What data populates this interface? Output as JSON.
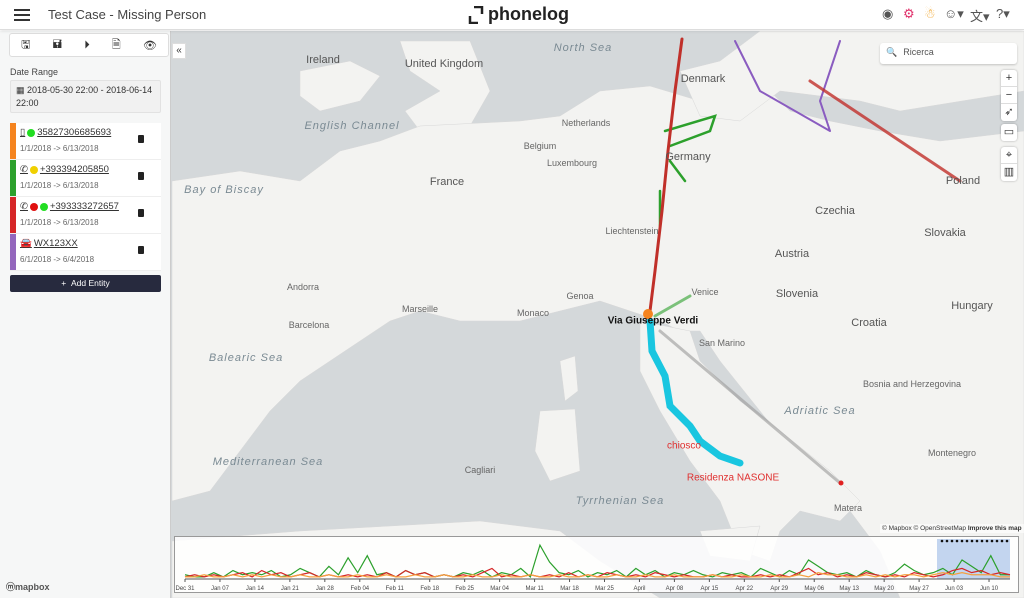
{
  "header": {
    "title": "Test Case - Missing Person",
    "logo": "phonelog",
    "icons": [
      "record-icon",
      "settings-cogs-icon",
      "person-icon",
      "account-icon",
      "translate-icon",
      "help-icon"
    ]
  },
  "sidebar": {
    "date_range_label": "Date Range",
    "date_range_value": "2018-05-30 22:00 - 2018-06-14 22:00",
    "entities": [
      {
        "id": "35827306685693",
        "type": "phone-device",
        "dates": "1/1/2018 -> 6/13/2018",
        "color": "#f5841f",
        "status": [
          "#22dd22"
        ]
      },
      {
        "id": "+393394205850",
        "type": "phone-number",
        "dates": "1/1/2018 -> 6/13/2018",
        "color": "#2ca02c",
        "status": [
          "#f0d000"
        ]
      },
      {
        "id": "+393333272657",
        "type": "phone-number",
        "dates": "1/1/2018 -> 6/13/2018",
        "color": "#d62728",
        "status": [
          "#e01010",
          "#22dd22"
        ]
      },
      {
        "id": "WX123XX",
        "type": "car",
        "dates": "6/1/2018 -> 6/4/2018",
        "color": "#9467bd",
        "status": []
      }
    ],
    "add_entity": "Add Entity"
  },
  "map": {
    "search_placeholder": "Ricerca",
    "attribution": "© Mapbox © OpenStreetMap",
    "improve": "Improve this map",
    "mapbox_logo": "mapbox",
    "labels": [
      "North Sea",
      "Ireland",
      "United Kingdom",
      "Denmark",
      "Netherlands",
      "Belgium",
      "Luxembourg",
      "Germany",
      "France",
      "Bay of Biscay",
      "English Channel",
      "Poland",
      "Czechia",
      "Liechtenstein",
      "Austria",
      "Slovakia",
      "Hungary",
      "Andorra",
      "Monaco",
      "Slovenia",
      "Croatia",
      "Barcelona",
      "Balearic Sea",
      "San Marino",
      "Bosnia and Herzegovina",
      "Adriatic Sea",
      "Mediterranean Sea",
      "Cagliari",
      "Tyrrhenian Sea",
      "Montenegro",
      "Venice",
      "Marseille",
      "Genoa",
      "Matera"
    ],
    "pois": {
      "verdi": "Via Giuseppe Verdi",
      "chiosco": "chiosco",
      "nasone": "Residenza NASONE"
    },
    "track_colors": {
      "orange": "#f5841f",
      "green": "#2ca02c",
      "red": "#c0302a",
      "purple": "#8a5cc0",
      "cyan": "#19c6e0"
    }
  },
  "chart_data": {
    "type": "line",
    "x_ticks": [
      "Dec 31",
      "Jan 07",
      "Jan 14",
      "Jan 21",
      "Jan 28",
      "Feb 04",
      "Feb 11",
      "Feb 18",
      "Feb 25",
      "Mar 04",
      "Mar 11",
      "Mar 18",
      "Mar 25",
      "April",
      "Apr 08",
      "Apr 15",
      "Apr 22",
      "Apr 29",
      "May 06",
      "May 13",
      "May 20",
      "May 27",
      "Jun 03",
      "Jun 10"
    ],
    "selection": [
      "2018-05-30",
      "2018-06-14"
    ],
    "series": [
      {
        "color": "#2ca02c",
        "values": [
          2,
          1,
          1,
          3,
          1,
          4,
          2,
          3,
          2,
          4,
          1,
          2,
          5,
          3,
          1,
          6,
          2,
          10,
          3,
          11,
          2,
          3,
          1,
          4,
          2,
          3,
          1,
          2,
          1,
          3,
          2,
          4,
          1,
          3,
          2,
          5,
          1,
          16,
          8,
          3,
          2,
          4,
          1,
          3,
          2,
          4,
          1,
          5,
          2,
          4,
          1,
          3,
          2,
          4,
          2,
          1,
          3,
          2,
          3,
          1,
          5,
          3,
          1,
          4,
          2,
          9,
          6,
          3,
          2,
          3,
          1,
          4,
          2,
          1,
          3,
          7,
          4,
          2,
          3,
          5,
          2,
          9,
          6,
          3,
          11,
          2,
          2
        ]
      },
      {
        "color": "#d62728",
        "values": [
          1,
          2,
          1,
          2,
          1,
          2,
          3,
          1,
          4,
          2,
          3,
          1,
          2,
          3,
          1,
          2,
          1,
          2,
          1,
          2,
          1,
          3,
          1,
          4,
          2,
          3,
          1,
          2,
          1,
          2,
          1,
          3,
          5,
          1,
          2,
          1,
          2,
          1,
          2,
          1,
          3,
          1,
          2,
          1,
          3,
          2,
          1,
          2,
          1,
          3,
          2,
          1,
          2,
          1,
          1,
          2,
          1,
          2,
          1,
          1,
          2,
          1,
          2,
          1,
          3,
          5,
          2,
          3,
          1,
          2,
          1,
          3,
          2,
          1,
          2,
          1,
          3,
          2,
          1,
          2,
          4,
          5,
          3,
          4,
          2,
          3,
          2
        ]
      },
      {
        "color": "#f5a040",
        "values": [
          1,
          1,
          2,
          1,
          1,
          2,
          1,
          2,
          1,
          2,
          1,
          1,
          2,
          1,
          1,
          2,
          1,
          1,
          2,
          1,
          1,
          2,
          1,
          1,
          2,
          1,
          1,
          2,
          1,
          1,
          2,
          1,
          1,
          2,
          1,
          1,
          2,
          1,
          1,
          2,
          1,
          1,
          2,
          1,
          1,
          2,
          1,
          1,
          2,
          1,
          1,
          2,
          1,
          1,
          1,
          2,
          1,
          1,
          2,
          1,
          1,
          2,
          1,
          1,
          2,
          1,
          3,
          2,
          2,
          1,
          1,
          2,
          1,
          2,
          1,
          2,
          2,
          1,
          2,
          3,
          2,
          3,
          2,
          2,
          2,
          1,
          1
        ]
      }
    ]
  }
}
